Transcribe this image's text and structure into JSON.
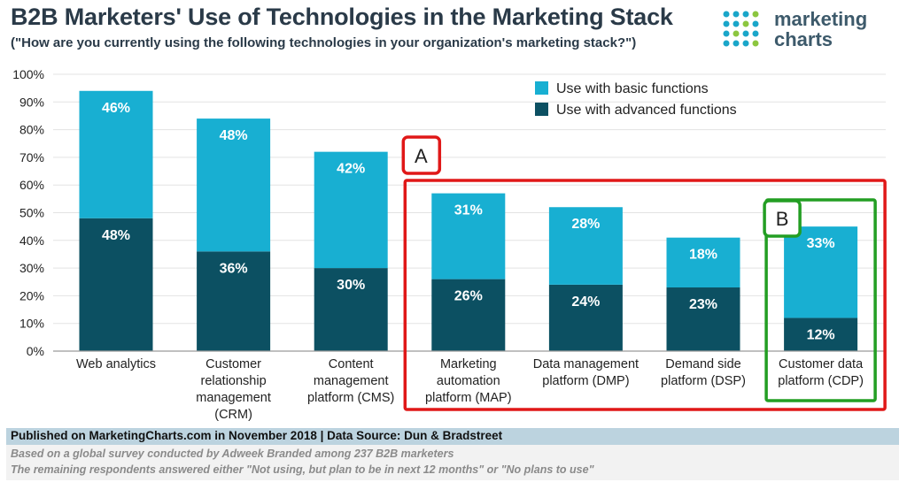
{
  "header": {
    "title": "B2B Marketers' Use of Technologies in the Marketing Stack",
    "subtitle": "(\"How are you currently using the following technologies in your organization's marketing stack?\")"
  },
  "logo": {
    "line1": "marketing",
    "line2": "charts"
  },
  "chart_data": {
    "type": "bar",
    "stacked": true,
    "categories": [
      [
        "Web analytics"
      ],
      [
        "Customer",
        "relationship",
        "management",
        "(CRM)"
      ],
      [
        "Content",
        "management",
        "platform (CMS)"
      ],
      [
        "Marketing",
        "automation",
        "platform (MAP)"
      ],
      [
        "Data management",
        "platform (DMP)"
      ],
      [
        "Demand side",
        "platform (DSP)"
      ],
      [
        "Customer data",
        "platform (CDP)"
      ]
    ],
    "series": [
      {
        "name": "Use with advanced functions",
        "color": "#0c5062",
        "values": [
          48,
          36,
          30,
          26,
          24,
          23,
          12
        ],
        "labels": [
          "48%",
          "36%",
          "30%",
          "26%",
          "24%",
          "23%",
          "12%"
        ]
      },
      {
        "name": "Use with basic functions",
        "color": "#18afd2",
        "values": [
          46,
          48,
          42,
          31,
          28,
          18,
          33
        ],
        "labels": [
          "46%",
          "48%",
          "42%",
          "31%",
          "28%",
          "18%",
          "33%"
        ]
      }
    ],
    "legend": [
      "Use with basic functions",
      "Use with advanced functions"
    ],
    "yticks": [
      "0%",
      "10%",
      "20%",
      "30%",
      "40%",
      "50%",
      "60%",
      "70%",
      "80%",
      "90%",
      "100%"
    ],
    "ylim": [
      0,
      100
    ],
    "annotations": [
      {
        "label": "A",
        "color": "#e01818"
      },
      {
        "label": "B",
        "color": "#239e23"
      }
    ]
  },
  "footer": {
    "published": "Published on MarketingCharts.com in November 2018 | Data Source: Dun & Bradstreet",
    "note1": "Based on a global survey conducted by Adweek Branded among 237 B2B marketers",
    "note2": "The remaining respondents answered either \"Not using, but plan to be in next 12 months\" or \"No plans to use\""
  }
}
